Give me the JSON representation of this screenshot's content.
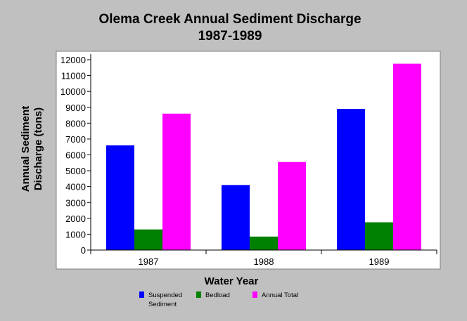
{
  "chart_data": {
    "type": "bar",
    "title": "Olema Creek Annual Sediment Discharge",
    "subtitle": "1987-1989",
    "xlabel": "Water Year",
    "ylabel_lines": [
      "Annual Sediment",
      "Discharge (tons)"
    ],
    "categories": [
      "1987",
      "1988",
      "1989"
    ],
    "ylim": [
      0,
      12000
    ],
    "yticks": [
      0,
      1000,
      2000,
      3000,
      4000,
      5000,
      6000,
      7000,
      8000,
      9000,
      10000,
      11000,
      12000
    ],
    "grid": false,
    "legend_position": "bottom",
    "series": [
      {
        "name": "Suspended Sediment",
        "legend_lines": [
          "Suspended",
          "Sediment"
        ],
        "color": "#0000ff",
        "values": [
          6600,
          4100,
          8900
        ]
      },
      {
        "name": "Bedload",
        "legend_lines": [
          "Bedload"
        ],
        "color": "#008000",
        "values": [
          1300,
          850,
          1750
        ]
      },
      {
        "name": "Annual Total",
        "legend_lines": [
          "Annual Total"
        ],
        "color": "#ff00ff",
        "values": [
          8600,
          5550,
          11750
        ]
      }
    ]
  }
}
